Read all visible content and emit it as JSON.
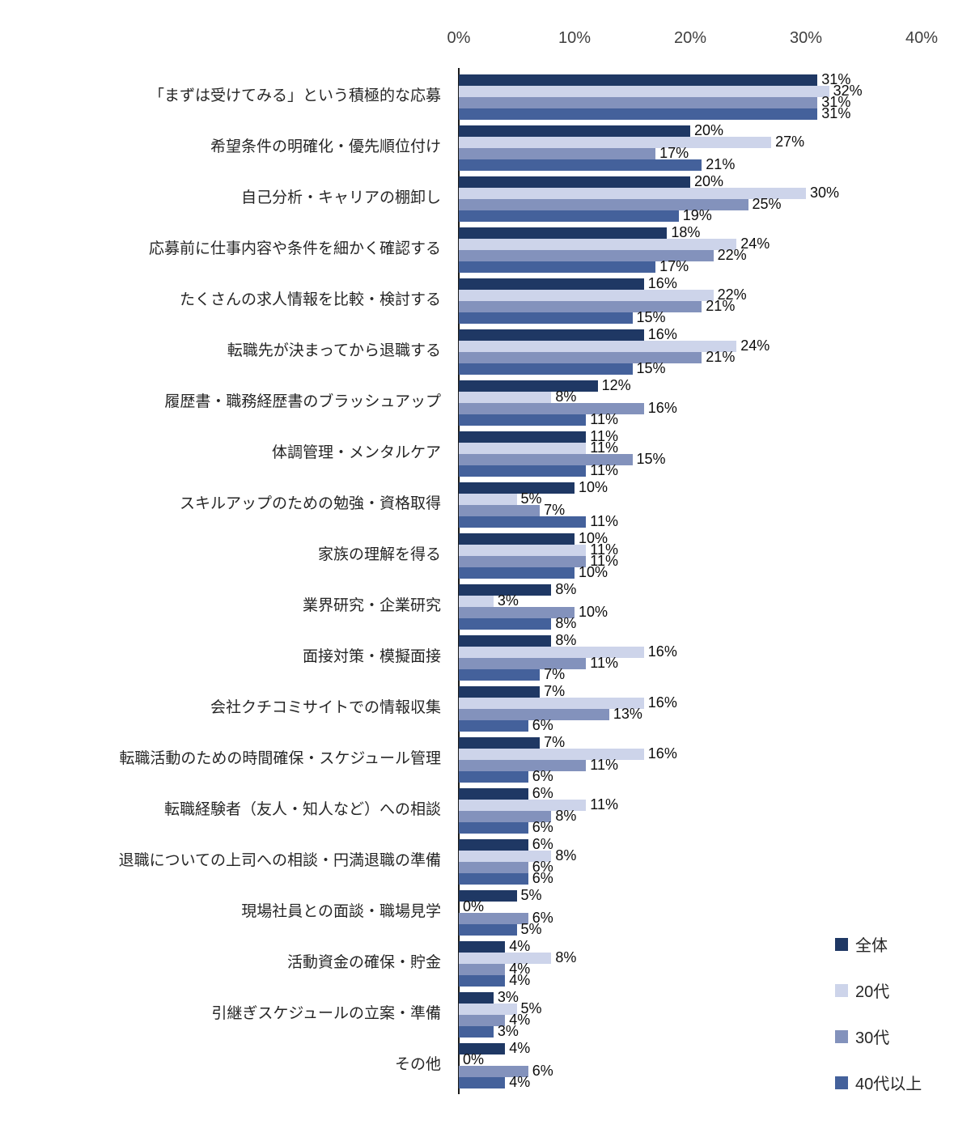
{
  "chart_data": {
    "type": "bar",
    "orientation": "horizontal",
    "title": "",
    "xlabel": "",
    "ylabel": "",
    "xlim": [
      0,
      40
    ],
    "x_tick_labels": [
      "0%",
      "10%",
      "20%",
      "30%",
      "40%"
    ],
    "x_tick_values": [
      0,
      10,
      20,
      30,
      40
    ],
    "grid": false,
    "legend_position": "bottom-right",
    "value_suffix": "%",
    "categories": [
      "「まずは受けてみる」という積極的な応募",
      "希望条件の明確化・優先順位付け",
      "自己分析・キャリアの棚卸し",
      "応募前に仕事内容や条件を細かく確認する",
      "たくさんの求人情報を比較・検討する",
      "転職先が決まってから退職する",
      "履歴書・職務経歴書のブラッシュアップ",
      "体調管理・メンタルケア",
      "スキルアップのための勉強・資格取得",
      "家族の理解を得る",
      "業界研究・企業研究",
      "面接対策・模擬面接",
      "会社クチコミサイトでの情報収集",
      "転職活動のための時間確保・スケジュール管理",
      "転職経験者（友人・知人など）への相談",
      "退職についての上司への相談・円満退職の準備",
      "現場社員との面談・職場見学",
      "活動資金の確保・貯金",
      "引継ぎスケジュールの立案・準備",
      "その他"
    ],
    "series": [
      {
        "name": "全体",
        "key": "overall",
        "color": "#1F3864",
        "values": [
          31,
          20,
          20,
          18,
          16,
          16,
          12,
          11,
          10,
          10,
          8,
          8,
          7,
          7,
          6,
          6,
          5,
          4,
          3,
          4
        ]
      },
      {
        "name": "20代",
        "key": "20s",
        "color": "#CDD4EA",
        "values": [
          32,
          27,
          30,
          24,
          22,
          24,
          8,
          11,
          5,
          11,
          3,
          16,
          16,
          16,
          11,
          8,
          0,
          8,
          5,
          0
        ]
      },
      {
        "name": "30代",
        "key": "30s",
        "color": "#8392BC",
        "values": [
          31,
          17,
          25,
          22,
          21,
          21,
          16,
          15,
          7,
          11,
          10,
          11,
          13,
          11,
          8,
          6,
          6,
          4,
          4,
          6
        ]
      },
      {
        "name": "40代以上",
        "key": "40s-plus",
        "color": "#44619B",
        "values": [
          31,
          21,
          19,
          17,
          15,
          15,
          11,
          11,
          11,
          10,
          8,
          7,
          6,
          6,
          6,
          6,
          5,
          4,
          3,
          4
        ]
      }
    ]
  }
}
